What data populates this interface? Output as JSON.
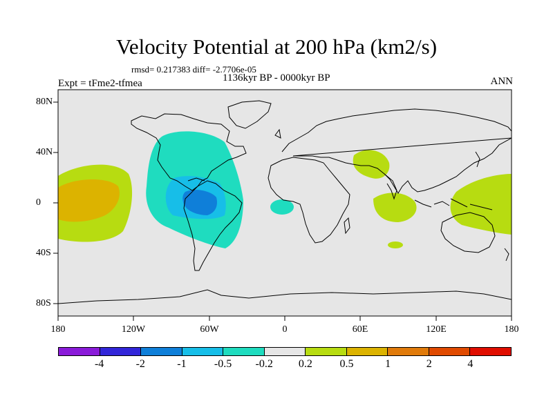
{
  "title": "Velocity Potential at 200 hPa (km2/s)",
  "stats": "rmsd= 0.217383 diff= -2.7706e-05",
  "period": "1136kyr BP - 0000kyr BP",
  "experiment": "Expt = tFme2-tfmea",
  "season": "ANN",
  "map": {
    "ocean_color": "#e6e6e6",
    "lat_labels": [
      "80N",
      "40N",
      "0",
      "40S",
      "80S"
    ],
    "lon_labels": [
      "180",
      "120W",
      "60W",
      "0",
      "60E",
      "120E",
      "180"
    ]
  },
  "colorbar": {
    "colors": [
      "#8a1bd9",
      "#3226d9",
      "#0f7fd9",
      "#17bee8",
      "#1fdcbf",
      "#e6e6e6",
      "#b7dc11",
      "#dcb300",
      "#e07a0a",
      "#e04a00",
      "#e00e00"
    ],
    "labels": [
      "-4",
      "-2",
      "-1",
      "-0.5",
      "-0.2",
      "0.2",
      "0.5",
      "1",
      "2",
      "4"
    ]
  },
  "anomalies": [
    {
      "region": "central-pacific-positive",
      "level": "1"
    },
    {
      "region": "central-pacific-outer",
      "level": "0.5"
    },
    {
      "region": "americas-negative-core",
      "level": "-1"
    },
    {
      "region": "americas-negative-mid",
      "level": "-0.5"
    },
    {
      "region": "americas-negative-outer",
      "level": "-0.2"
    },
    {
      "region": "east-atlantic-negative",
      "level": "-0.2"
    },
    {
      "region": "mediterranean-positive",
      "level": "0.5"
    },
    {
      "region": "indian-ocean-positive",
      "level": "0.5"
    },
    {
      "region": "western-pacific-positive",
      "level": "0.5"
    }
  ]
}
